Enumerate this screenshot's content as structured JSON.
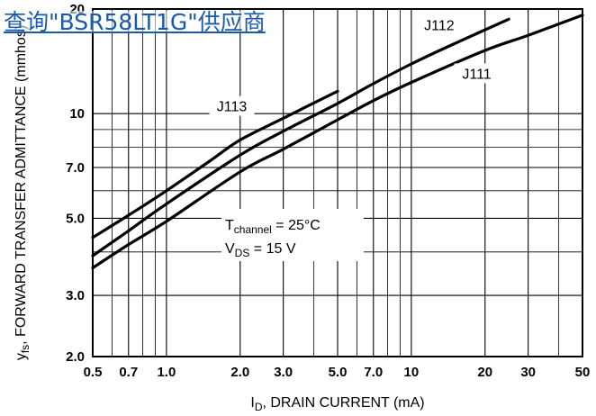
{
  "overlay_link": {
    "text": "查询\"BSR58LT1G\"供应商",
    "color": "#1a5aa8"
  },
  "chart_data": {
    "type": "line",
    "x_scale": "log",
    "y_scale": "log",
    "xlim": [
      0.5,
      50
    ],
    "ylim": [
      2.0,
      20
    ],
    "grid": true,
    "x_ticks": [
      0.5,
      0.7,
      1.0,
      2.0,
      3.0,
      5.0,
      7.0,
      10,
      20,
      30,
      50
    ],
    "x_tick_labels": [
      "0.5",
      "0.7",
      "1.0",
      "2.0",
      "3.0",
      "5.0",
      "7.0",
      "10",
      "20",
      "30",
      "50"
    ],
    "y_ticks": [
      2.0,
      3.0,
      5.0,
      7.0,
      10,
      20
    ],
    "y_tick_labels": [
      "2.0",
      "3.0",
      "5.0",
      "7.0",
      "10",
      "20"
    ],
    "xlabel": {
      "main": "I",
      "sub": "D",
      "rest": ", DRAIN CURRENT (mA)"
    },
    "ylabel": {
      "main": "y",
      "sub": "fs",
      "rest": ", FORWARD TRANSFER ADMITTANCE (mmhos)"
    },
    "conditions": [
      {
        "main": "T",
        "sub": "channel",
        "rest": " = 25°C"
      },
      {
        "main": "V",
        "sub": "DS",
        "rest": " = 15 V"
      }
    ],
    "series": [
      {
        "name": "J113",
        "label_at": [
          1.85,
          10.4
        ],
        "x": [
          0.5,
          0.7,
          1.0,
          1.5,
          2.0,
          3.0,
          5.0
        ],
        "y": [
          4.4,
          5.1,
          6.0,
          7.3,
          8.4,
          9.7,
          11.6
        ]
      },
      {
        "name": "J112",
        "label_at": [
          13,
          17.8
        ],
        "x": [
          0.5,
          0.7,
          1.0,
          2.0,
          3.0,
          5.0,
          7.0,
          10,
          15,
          25
        ],
        "y": [
          3.9,
          4.6,
          5.5,
          7.6,
          8.9,
          10.7,
          12.2,
          13.9,
          15.9,
          18.7
        ]
      },
      {
        "name": "J111",
        "label_at": [
          18.5,
          12.9
        ],
        "x": [
          0.5,
          0.7,
          1.0,
          2.0,
          3.0,
          5.0,
          7.0,
          10,
          20,
          30,
          50
        ],
        "y": [
          3.6,
          4.2,
          4.9,
          6.8,
          7.9,
          9.6,
          10.9,
          12.3,
          15.2,
          16.8,
          19.2
        ]
      }
    ]
  }
}
